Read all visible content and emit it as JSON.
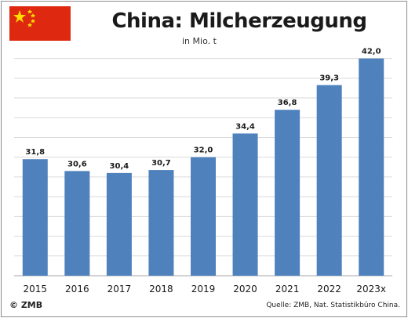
{
  "title": "China: Milcherzeugung",
  "unit": "in Mio. t",
  "source": "Quelle: ZMB, Nat. Statistikbüro China.",
  "copyright": "© ZMB",
  "flag_icon": "china-flag-icon",
  "colors": {
    "bar": "#4f81bd",
    "grid": "#d9d9d9",
    "flag_red": "#de2910",
    "flag_star": "#ffde00"
  },
  "chart_data": {
    "type": "bar",
    "categories": [
      "2015",
      "2016",
      "2017",
      "2018",
      "2019",
      "2020",
      "2021",
      "2022",
      "2023x"
    ],
    "values": [
      31.8,
      30.6,
      30.4,
      30.7,
      32.0,
      34.4,
      36.8,
      39.3,
      42.0
    ],
    "value_labels": [
      "31,8",
      "30,6",
      "30,4",
      "30,7",
      "32,0",
      "34,4",
      "36,8",
      "39,3",
      "42,0"
    ],
    "title": "China: Milcherzeugung",
    "ylabel": "in Mio. t",
    "ylim": [
      20,
      43
    ],
    "grid": true
  }
}
